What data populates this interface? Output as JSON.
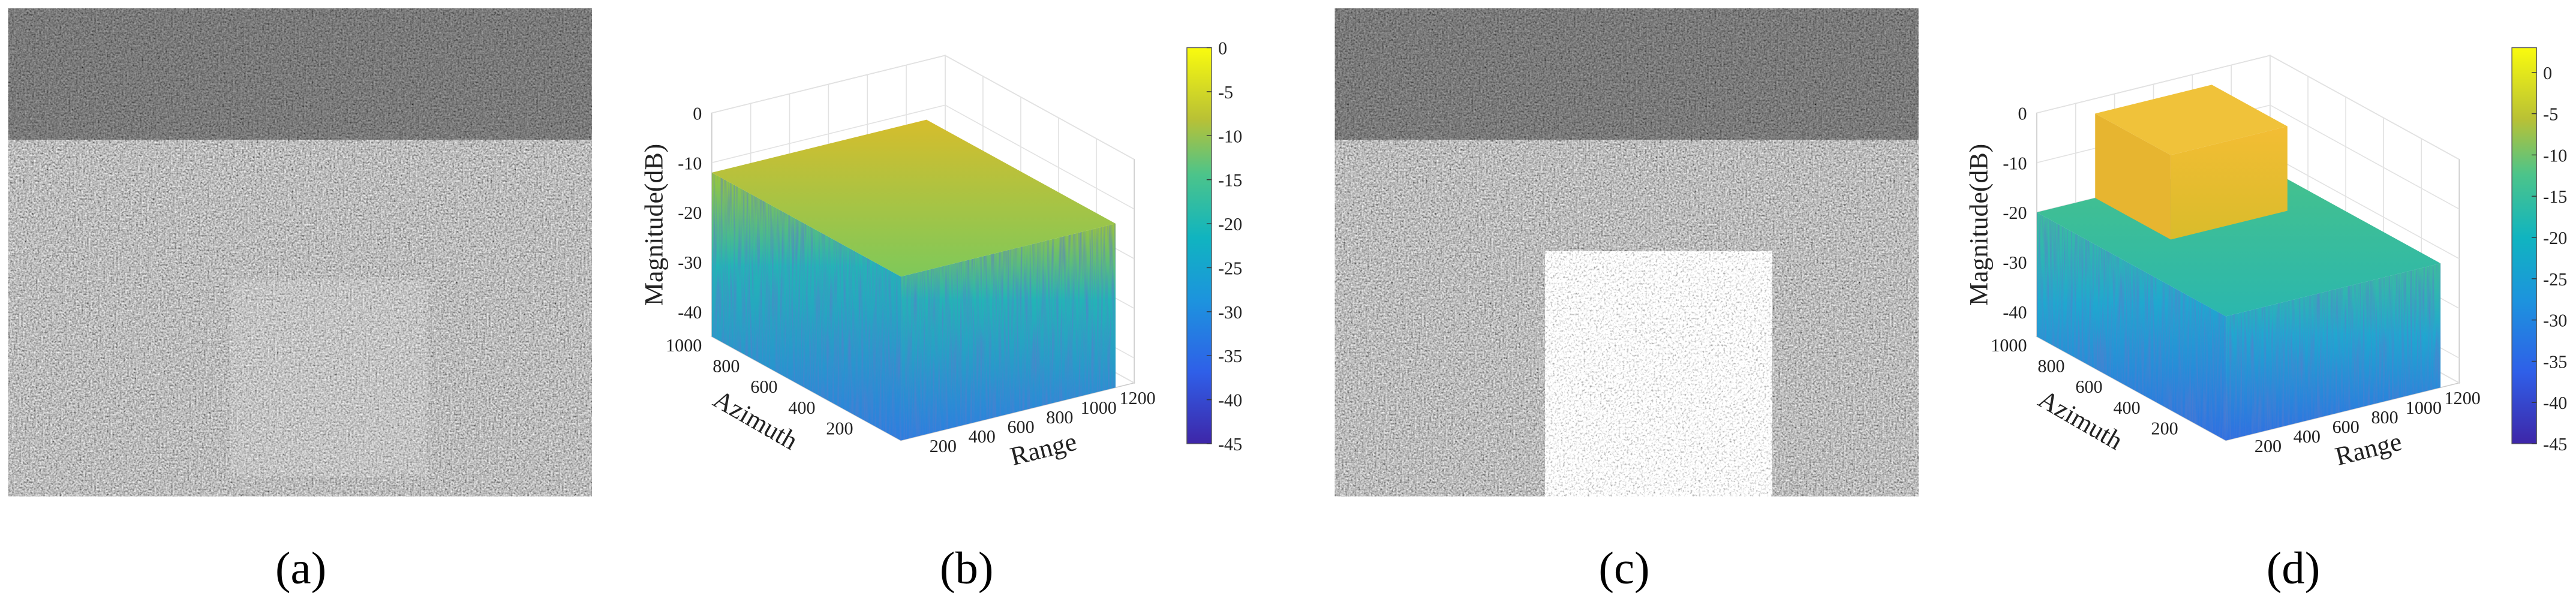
{
  "panels": [
    {
      "label": "(a)"
    },
    {
      "label": "(b)",
      "plot": {
        "z_label": "Magnitude(dB)",
        "x_label": "Range",
        "y_label": "Azimuth",
        "zlim": [
          -45,
          0
        ],
        "zticks": [
          0,
          -10,
          -20,
          -30,
          -40
        ],
        "xlim": [
          0,
          1200
        ],
        "xticks": [
          200,
          400,
          600,
          800,
          1000,
          1200
        ],
        "ylim": [
          0,
          1000
        ],
        "yticks": [
          200,
          400,
          600,
          800,
          1000
        ],
        "colorbar_lim": [
          -45,
          0
        ],
        "colorbar_ticks": [
          0,
          -5,
          -10,
          -15,
          -20,
          -25,
          -30,
          -35,
          -40,
          -45
        ]
      }
    },
    {
      "label": "(c)"
    },
    {
      "label": "(d)",
      "plot": {
        "z_label": "Magnitude(dB)",
        "x_label": "Range",
        "y_label": "Azimuth",
        "zlim": [
          -45,
          0
        ],
        "zticks": [
          0,
          -10,
          -20,
          -30,
          -40
        ],
        "xlim": [
          0,
          1200
        ],
        "xticks": [
          200,
          400,
          600,
          800,
          1000,
          1200
        ],
        "ylim": [
          0,
          1000
        ],
        "yticks": [
          200,
          400,
          600,
          800,
          1000
        ],
        "colorbar_lim": [
          -45,
          3
        ],
        "colorbar_ticks": [
          0,
          -5,
          -10,
          -15,
          -20,
          -25,
          -30,
          -35,
          -40,
          -45
        ]
      }
    }
  ]
}
